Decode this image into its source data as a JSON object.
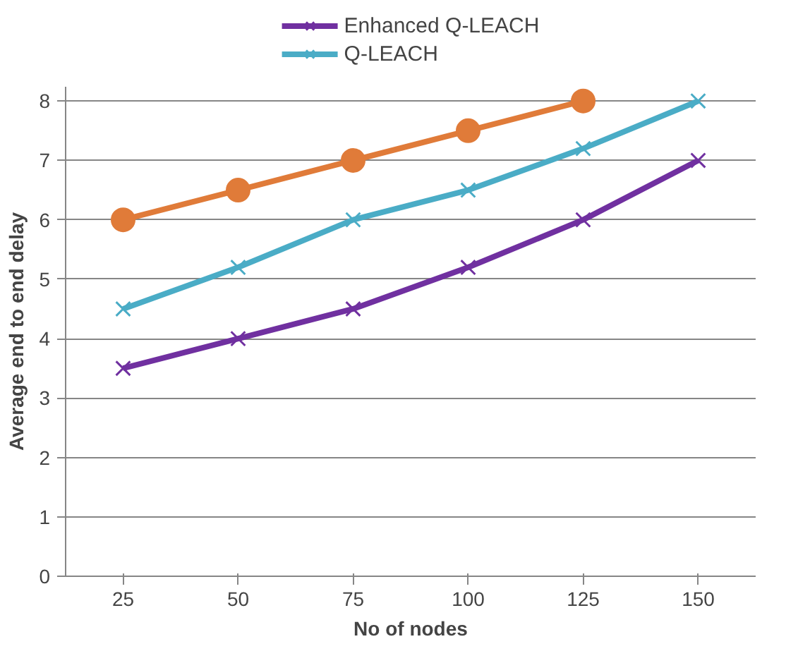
{
  "chart_data": {
    "type": "line",
    "xlabel": "No of nodes",
    "ylabel": "Average end to end delay",
    "categories": [
      "25",
      "50",
      "75",
      "100",
      "125",
      "150"
    ],
    "series": [
      {
        "name": "Enhanced Q-LEACH",
        "color": "#7030a0",
        "marker": "cross",
        "values": [
          3.5,
          4,
          4.5,
          5.2,
          6,
          7
        ]
      },
      {
        "name": "Q-LEACH",
        "color": "#4aacc6",
        "marker": "cross",
        "values": [
          4.5,
          5.2,
          6,
          6.5,
          7.2,
          8
        ]
      },
      {
        "color": "#e07b39",
        "marker": "circle",
        "values": [
          6,
          6.5,
          7,
          7.5,
          8,
          null
        ]
      }
    ],
    "ylim": [
      0,
      8
    ],
    "yticks": [
      0,
      1,
      2,
      3,
      4,
      5,
      6,
      7,
      8
    ],
    "grid": "y",
    "legend": "top"
  }
}
